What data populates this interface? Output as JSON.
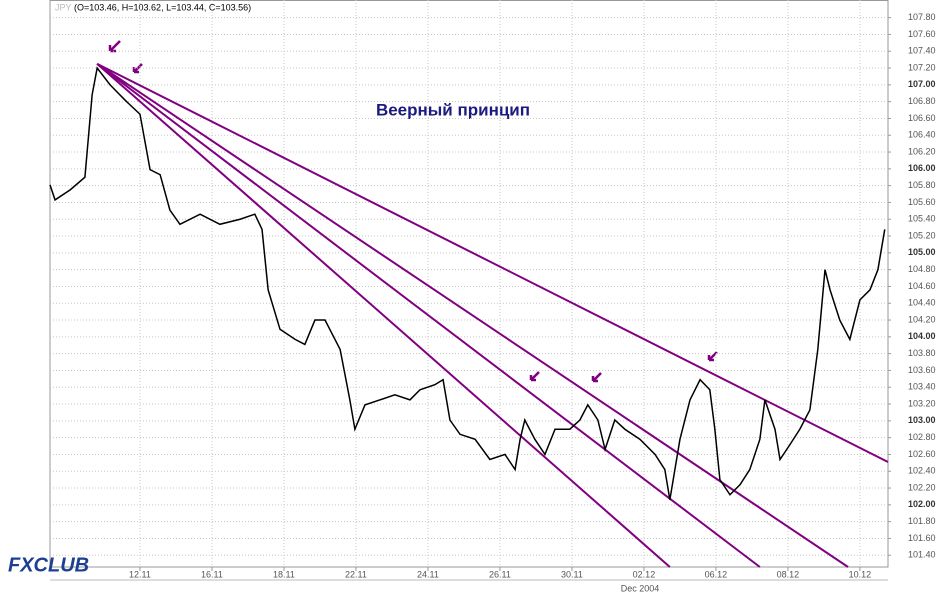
{
  "chart_data": {
    "type": "line",
    "title": "Веерный принцип",
    "header": "(O=103.46, H=103.62, L=103.44, C=103.56)",
    "period_label": "Dec 2004",
    "logo": "FXCLUB",
    "x": [
      -2.5,
      -2.36,
      -1.94,
      -1.53,
      -1.33,
      -1.19,
      -0.83,
      -0.42,
      0,
      0.28,
      0.56,
      0.83,
      1.11,
      1.67,
      2.22,
      2.78,
      3.19,
      3.39,
      3.56,
      3.89,
      4.31,
      4.58,
      4.86,
      5.14,
      5.56,
      5.83,
      5.97,
      6.25,
      6.67,
      7.08,
      7.5,
      7.78,
      8.19,
      8.42,
      8.61,
      8.89,
      9.31,
      9.72,
      10.14,
      10.42,
      10.56,
      10.69,
      10.97,
      11.25,
      11.53,
      11.94,
      12.22,
      12.44,
      12.72,
      12.92,
      13.19,
      13.47,
      13.89,
      14.31,
      14.58,
      14.72,
      15.0,
      15.28,
      15.56,
      15.83,
      15.97,
      16.11,
      16.39,
      16.67,
      16.94,
      17.22,
      17.36,
      17.64,
      17.78,
      18.06,
      18.33,
      18.61,
      18.83,
      19.03,
      19.17,
      19.44,
      19.72,
      20.0,
      20.28,
      20.5,
      20.69
    ],
    "series": [
      {
        "name": "JPY",
        "color": "#000000",
        "values": [
          105.81,
          105.63,
          105.75,
          105.9,
          106.88,
          107.2,
          107.0,
          106.82,
          106.65,
          105.99,
          105.93,
          105.51,
          105.34,
          105.46,
          105.34,
          105.4,
          105.46,
          105.28,
          104.56,
          104.09,
          103.97,
          103.91,
          104.2,
          104.2,
          103.85,
          103.25,
          102.9,
          103.19,
          103.25,
          103.31,
          103.25,
          103.37,
          103.43,
          103.49,
          103.01,
          102.84,
          102.78,
          102.54,
          102.6,
          102.42,
          102.78,
          103.01,
          102.78,
          102.6,
          102.9,
          102.9,
          103.01,
          103.19,
          103.01,
          102.66,
          103.01,
          102.9,
          102.78,
          102.6,
          102.42,
          102.06,
          102.78,
          103.25,
          103.49,
          103.37,
          102.9,
          102.3,
          102.12,
          102.24,
          102.42,
          102.78,
          103.25,
          102.9,
          102.54,
          102.72,
          102.9,
          103.13,
          103.85,
          104.8,
          104.56,
          104.2,
          103.97,
          104.44,
          104.56,
          104.8,
          105.28
        ]
      }
    ],
    "fan_lines": [
      {
        "color": "#800080",
        "x": [
          -1.19,
          20.78
        ],
        "y": [
          107.25,
          102.51
        ]
      },
      {
        "color": "#800080",
        "x": [
          -1.19,
          19.67
        ],
        "y": [
          107.25,
          101.26
        ]
      },
      {
        "color": "#800080",
        "x": [
          -1.19,
          17.22
        ],
        "y": [
          107.25,
          101.26
        ]
      },
      {
        "color": "#800080",
        "x": [
          -1.19,
          14.72
        ],
        "y": [
          107.25,
          101.26
        ]
      }
    ],
    "xlim": [
      -2.5,
      20.78
    ],
    "xticks": [
      {
        "value": 0,
        "label": "12.11"
      },
      {
        "value": 2,
        "label": "16.11"
      },
      {
        "value": 4,
        "label": "18.11"
      },
      {
        "value": 6,
        "label": "22.11"
      },
      {
        "value": 8,
        "label": "24.11"
      },
      {
        "value": 10,
        "label": "26.11"
      },
      {
        "value": 12,
        "label": "30.11"
      },
      {
        "value": 14,
        "label": "02.12"
      },
      {
        "value": 16,
        "label": "06.12"
      },
      {
        "value": 18,
        "label": "08.12"
      },
      {
        "value": 20,
        "label": "10.12"
      }
    ],
    "ylim": [
      101.26,
      108.01
    ],
    "yticks": [
      {
        "value": 107.8,
        "label": "107.80"
      },
      {
        "value": 107.6,
        "label": "107.60"
      },
      {
        "value": 107.4,
        "label": "107.40"
      },
      {
        "value": 107.2,
        "label": "107.20"
      },
      {
        "value": 107,
        "label": "107.00"
      },
      {
        "value": 106.8,
        "label": "106.80"
      },
      {
        "value": 106.6,
        "label": "106.60"
      },
      {
        "value": 106.4,
        "label": "106.40"
      },
      {
        "value": 106.2,
        "label": "106.20"
      },
      {
        "value": 106,
        "label": "106.00"
      },
      {
        "value": 105.8,
        "label": "105.80"
      },
      {
        "value": 105.6,
        "label": "105.60"
      },
      {
        "value": 105.4,
        "label": "105.40"
      },
      {
        "value": 105.2,
        "label": "105.20"
      },
      {
        "value": 105,
        "label": "105.00"
      },
      {
        "value": 104.8,
        "label": "104.80"
      },
      {
        "value": 104.6,
        "label": "104.60"
      },
      {
        "value": 104.4,
        "label": "104.40"
      },
      {
        "value": 104.2,
        "label": "104.20"
      },
      {
        "value": 104,
        "label": "104.00"
      },
      {
        "value": 103.8,
        "label": "103.80"
      },
      {
        "value": 103.6,
        "label": "103.60"
      },
      {
        "value": 103.4,
        "label": "103.40"
      },
      {
        "value": 103.2,
        "label": "103.20"
      },
      {
        "value": 103,
        "label": "103.00"
      },
      {
        "value": 102.8,
        "label": "102.80"
      },
      {
        "value": 102.6,
        "label": "102.60"
      },
      {
        "value": 102.4,
        "label": "102.40"
      },
      {
        "value": 102.2,
        "label": "102.20"
      },
      {
        "value": 102,
        "label": "102.00"
      },
      {
        "value": 101.8,
        "label": "101.80"
      },
      {
        "value": 101.6,
        "label": "101.60"
      },
      {
        "value": 101.4,
        "label": "101.40"
      }
    ],
    "grid": true
  }
}
